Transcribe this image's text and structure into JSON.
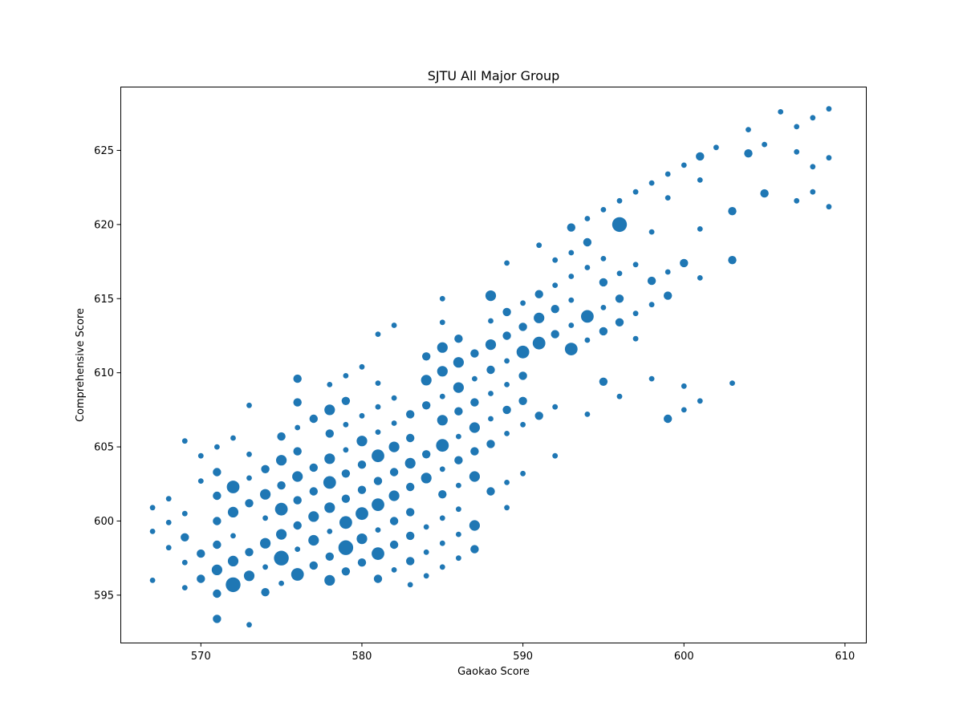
{
  "chart_data": {
    "type": "scatter",
    "title": "SJTU All Major Group",
    "xlabel": "Gaokao Score",
    "ylabel": "Comprehensive Score",
    "xlim": [
      565,
      611.3
    ],
    "ylim": [
      591.8,
      629.3
    ],
    "xticks": [
      570,
      580,
      590,
      600,
      610
    ],
    "yticks": [
      595,
      600,
      605,
      610,
      615,
      620,
      625
    ],
    "grid": false,
    "marker_color": "#1f77b4",
    "size_note": "marker size = count at point (1-5)",
    "points": [
      [
        567,
        596,
        1
      ],
      [
        567,
        599.3,
        1
      ],
      [
        567,
        600.9,
        1
      ],
      [
        568,
        598.2,
        1
      ],
      [
        568,
        599.9,
        1
      ],
      [
        568,
        601.5,
        1
      ],
      [
        569,
        595.5,
        1
      ],
      [
        569,
        597.2,
        1
      ],
      [
        569,
        598.9,
        2
      ],
      [
        569,
        600.5,
        1
      ],
      [
        569,
        605.4,
        1
      ],
      [
        570,
        596.1,
        2
      ],
      [
        570,
        597.8,
        2
      ],
      [
        570,
        602.7,
        1
      ],
      [
        570,
        604.4,
        1
      ],
      [
        571,
        593.4,
        2
      ],
      [
        571,
        595.1,
        2
      ],
      [
        571,
        596.7,
        3
      ],
      [
        571,
        598.4,
        2
      ],
      [
        571,
        600,
        2
      ],
      [
        571,
        601.7,
        2
      ],
      [
        571,
        603.3,
        2
      ],
      [
        571,
        605,
        1
      ],
      [
        572,
        595.7,
        5
      ],
      [
        572,
        597.3,
        3
      ],
      [
        572,
        599,
        1
      ],
      [
        572,
        600.6,
        3
      ],
      [
        572,
        602.3,
        4
      ],
      [
        572,
        605.6,
        1
      ],
      [
        573,
        593,
        1
      ],
      [
        573,
        596.3,
        3
      ],
      [
        573,
        597.9,
        2
      ],
      [
        573,
        601.2,
        2
      ],
      [
        573,
        602.9,
        1
      ],
      [
        573,
        604.5,
        1
      ],
      [
        573,
        607.8,
        1
      ],
      [
        574,
        595.2,
        2
      ],
      [
        574,
        596.9,
        1
      ],
      [
        574,
        598.5,
        3
      ],
      [
        574,
        600.2,
        1
      ],
      [
        574,
        601.8,
        3
      ],
      [
        574,
        603.5,
        2
      ],
      [
        575,
        595.8,
        1
      ],
      [
        575,
        597.5,
        5
      ],
      [
        575,
        599.1,
        3
      ],
      [
        575,
        600.8,
        4
      ],
      [
        575,
        602.4,
        2
      ],
      [
        575,
        604.1,
        3
      ],
      [
        575,
        605.7,
        2
      ],
      [
        576,
        596.4,
        4
      ],
      [
        576,
        598.1,
        1
      ],
      [
        576,
        599.7,
        2
      ],
      [
        576,
        601.4,
        2
      ],
      [
        576,
        603,
        3
      ],
      [
        576,
        604.7,
        2
      ],
      [
        576,
        606.3,
        1
      ],
      [
        576,
        608,
        2
      ],
      [
        576,
        609.6,
        2
      ],
      [
        577,
        597,
        2
      ],
      [
        577,
        598.7,
        3
      ],
      [
        577,
        600.3,
        3
      ],
      [
        577,
        602,
        2
      ],
      [
        577,
        603.6,
        2
      ],
      [
        577,
        606.9,
        2
      ],
      [
        578,
        596,
        3
      ],
      [
        578,
        597.6,
        2
      ],
      [
        578,
        599.3,
        1
      ],
      [
        578,
        600.9,
        3
      ],
      [
        578,
        602.6,
        4
      ],
      [
        578,
        604.2,
        3
      ],
      [
        578,
        605.9,
        2
      ],
      [
        578,
        607.5,
        3
      ],
      [
        578,
        609.2,
        1
      ],
      [
        579,
        596.6,
        2
      ],
      [
        579,
        598.2,
        5
      ],
      [
        579,
        599.9,
        4
      ],
      [
        579,
        601.5,
        2
      ],
      [
        579,
        603.2,
        2
      ],
      [
        579,
        604.8,
        1
      ],
      [
        579,
        606.5,
        1
      ],
      [
        579,
        608.1,
        2
      ],
      [
        579,
        609.8,
        1
      ],
      [
        580,
        597.2,
        2
      ],
      [
        580,
        598.8,
        3
      ],
      [
        580,
        600.5,
        4
      ],
      [
        580,
        602.1,
        2
      ],
      [
        580,
        603.8,
        2
      ],
      [
        580,
        605.4,
        3
      ],
      [
        580,
        607.1,
        1
      ],
      [
        580,
        610.4,
        1
      ],
      [
        581,
        596.1,
        2
      ],
      [
        581,
        597.8,
        4
      ],
      [
        581,
        599.4,
        1
      ],
      [
        581,
        601.1,
        4
      ],
      [
        581,
        602.7,
        2
      ],
      [
        581,
        604.4,
        4
      ],
      [
        581,
        606,
        1
      ],
      [
        581,
        607.7,
        1
      ],
      [
        581,
        609.3,
        1
      ],
      [
        581,
        612.6,
        1
      ],
      [
        582,
        596.7,
        1
      ],
      [
        582,
        598.4,
        2
      ],
      [
        582,
        600,
        2
      ],
      [
        582,
        601.7,
        3
      ],
      [
        582,
        603.3,
        2
      ],
      [
        582,
        605,
        3
      ],
      [
        582,
        606.6,
        1
      ],
      [
        582,
        608.3,
        1
      ],
      [
        582,
        613.2,
        1
      ],
      [
        583,
        595.7,
        1
      ],
      [
        583,
        597.3,
        2
      ],
      [
        583,
        599,
        2
      ],
      [
        583,
        600.6,
        2
      ],
      [
        583,
        602.3,
        2
      ],
      [
        583,
        603.9,
        3
      ],
      [
        583,
        605.6,
        2
      ],
      [
        583,
        607.2,
        2
      ],
      [
        584,
        596.3,
        1
      ],
      [
        584,
        597.9,
        1
      ],
      [
        584,
        599.6,
        1
      ],
      [
        584,
        602.9,
        3
      ],
      [
        584,
        604.5,
        2
      ],
      [
        584,
        607.8,
        2
      ],
      [
        584,
        609.5,
        3
      ],
      [
        584,
        611.1,
        2
      ],
      [
        585,
        596.9,
        1
      ],
      [
        585,
        598.5,
        1
      ],
      [
        585,
        600.2,
        1
      ],
      [
        585,
        601.8,
        2
      ],
      [
        585,
        603.5,
        1
      ],
      [
        585,
        605.1,
        4
      ],
      [
        585,
        606.8,
        3
      ],
      [
        585,
        608.4,
        1
      ],
      [
        585,
        610.1,
        3
      ],
      [
        585,
        611.7,
        3
      ],
      [
        585,
        613.4,
        1
      ],
      [
        585,
        615,
        1
      ],
      [
        586,
        597.5,
        1
      ],
      [
        586,
        599.1,
        1
      ],
      [
        586,
        600.8,
        1
      ],
      [
        586,
        602.4,
        1
      ],
      [
        586,
        604.1,
        2
      ],
      [
        586,
        605.7,
        1
      ],
      [
        586,
        607.4,
        2
      ],
      [
        586,
        609,
        3
      ],
      [
        586,
        610.7,
        3
      ],
      [
        586,
        612.3,
        2
      ],
      [
        587,
        598.1,
        2
      ],
      [
        587,
        599.7,
        3
      ],
      [
        587,
        603,
        3
      ],
      [
        587,
        604.7,
        2
      ],
      [
        587,
        606.3,
        3
      ],
      [
        587,
        608,
        2
      ],
      [
        587,
        609.6,
        1
      ],
      [
        587,
        611.3,
        2
      ],
      [
        588,
        602,
        2
      ],
      [
        588,
        605.2,
        2
      ],
      [
        588,
        606.9,
        1
      ],
      [
        588,
        608.6,
        1
      ],
      [
        588,
        610.2,
        2
      ],
      [
        588,
        611.9,
        3
      ],
      [
        588,
        613.5,
        1
      ],
      [
        588,
        615.2,
        3
      ],
      [
        589,
        600.9,
        1
      ],
      [
        589,
        602.6,
        1
      ],
      [
        589,
        605.9,
        1
      ],
      [
        589,
        607.5,
        2
      ],
      [
        589,
        609.2,
        1
      ],
      [
        589,
        610.8,
        1
      ],
      [
        589,
        612.5,
        2
      ],
      [
        589,
        614.1,
        2
      ],
      [
        589,
        617.4,
        1
      ],
      [
        590,
        603.2,
        1
      ],
      [
        590,
        606.5,
        1
      ],
      [
        590,
        608.1,
        2
      ],
      [
        590,
        609.8,
        2
      ],
      [
        590,
        611.4,
        4
      ],
      [
        590,
        613.1,
        2
      ],
      [
        590,
        614.7,
        1
      ],
      [
        591,
        607.1,
        2
      ],
      [
        591,
        612,
        4
      ],
      [
        591,
        613.7,
        3
      ],
      [
        591,
        615.3,
        2
      ],
      [
        591,
        618.6,
        1
      ],
      [
        592,
        604.4,
        1
      ],
      [
        592,
        607.7,
        1
      ],
      [
        592,
        612.6,
        2
      ],
      [
        592,
        614.3,
        2
      ],
      [
        592,
        615.9,
        1
      ],
      [
        592,
        617.6,
        1
      ],
      [
        593,
        611.6,
        4
      ],
      [
        593,
        613.2,
        1
      ],
      [
        593,
        614.9,
        1
      ],
      [
        593,
        616.5,
        1
      ],
      [
        593,
        618.1,
        1
      ],
      [
        593,
        619.8,
        2
      ],
      [
        594,
        607.2,
        1
      ],
      [
        594,
        612.2,
        1
      ],
      [
        594,
        613.8,
        4
      ],
      [
        594,
        617.1,
        1
      ],
      [
        594,
        618.8,
        2
      ],
      [
        594,
        620.4,
        1
      ],
      [
        595,
        609.4,
        2
      ],
      [
        595,
        612.8,
        2
      ],
      [
        595,
        614.4,
        1
      ],
      [
        595,
        616.1,
        2
      ],
      [
        595,
        617.7,
        1
      ],
      [
        595,
        621,
        1
      ],
      [
        596,
        608.4,
        1
      ],
      [
        596,
        613.4,
        2
      ],
      [
        596,
        615,
        2
      ],
      [
        596,
        616.7,
        1
      ],
      [
        596,
        620,
        5
      ],
      [
        596,
        621.6,
        1
      ],
      [
        597,
        612.3,
        1
      ],
      [
        597,
        614,
        1
      ],
      [
        597,
        617.3,
        1
      ],
      [
        597,
        622.2,
        1
      ],
      [
        598,
        609.6,
        1
      ],
      [
        598,
        614.6,
        1
      ],
      [
        598,
        616.2,
        2
      ],
      [
        598,
        619.5,
        1
      ],
      [
        598,
        622.8,
        1
      ],
      [
        599,
        606.9,
        2
      ],
      [
        599,
        615.2,
        2
      ],
      [
        599,
        616.8,
        1
      ],
      [
        599,
        621.8,
        1
      ],
      [
        599,
        623.4,
        1
      ],
      [
        600,
        607.5,
        1
      ],
      [
        600,
        609.1,
        1
      ],
      [
        600,
        617.4,
        2
      ],
      [
        600,
        624,
        1
      ],
      [
        601,
        608.1,
        1
      ],
      [
        601,
        616.4,
        1
      ],
      [
        601,
        619.7,
        1
      ],
      [
        601,
        623,
        1
      ],
      [
        601,
        624.6,
        2
      ],
      [
        602,
        625.2,
        1
      ],
      [
        603,
        609.3,
        1
      ],
      [
        603,
        617.6,
        2
      ],
      [
        603,
        620.9,
        2
      ],
      [
        604,
        624.8,
        2
      ],
      [
        604,
        626.4,
        1
      ],
      [
        605,
        622.1,
        2
      ],
      [
        605,
        625.4,
        1
      ],
      [
        606,
        627.6,
        1
      ],
      [
        607,
        621.6,
        1
      ],
      [
        607,
        624.9,
        1
      ],
      [
        607,
        626.6,
        1
      ],
      [
        608,
        622.2,
        1
      ],
      [
        608,
        623.9,
        1
      ],
      [
        608,
        627.2,
        1
      ],
      [
        609,
        621.2,
        1
      ],
      [
        609,
        624.5,
        1
      ],
      [
        609,
        627.8,
        1
      ]
    ]
  }
}
